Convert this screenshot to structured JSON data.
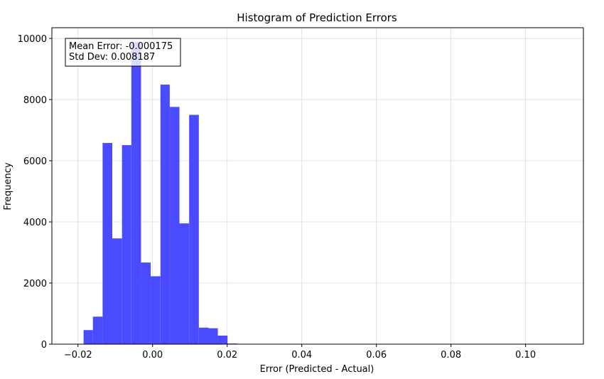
{
  "chart_data": {
    "type": "bar",
    "title": "Histogram of Prediction Errors",
    "xlabel": "Error (Predicted - Actual)",
    "ylabel": "Frequency",
    "xlim": [
      -0.027,
      0.1155
    ],
    "ylim": [
      0,
      10350
    ],
    "xticks": [
      -0.02,
      0.0,
      0.02,
      0.04,
      0.06,
      0.08,
      0.1
    ],
    "xtick_labels": [
      "−0.02",
      "0.00",
      "0.02",
      "0.04",
      "0.06",
      "0.08",
      "0.10"
    ],
    "yticks": [
      0,
      2000,
      4000,
      6000,
      8000,
      10000
    ],
    "ytick_labels": [
      "0",
      "2000",
      "4000",
      "6000",
      "8000",
      "10000"
    ],
    "grid": true,
    "bar_color": "#4a4aff",
    "bins": [
      {
        "x0": -0.0185,
        "x1": -0.016,
        "value": 460
      },
      {
        "x0": -0.016,
        "x1": -0.0134,
        "value": 900
      },
      {
        "x0": -0.0134,
        "x1": -0.0108,
        "value": 6580
      },
      {
        "x0": -0.0108,
        "x1": -0.0082,
        "value": 3460
      },
      {
        "x0": -0.0082,
        "x1": -0.0057,
        "value": 6510
      },
      {
        "x0": -0.0057,
        "x1": -0.0031,
        "value": 9880
      },
      {
        "x0": -0.0031,
        "x1": -0.0005,
        "value": 2670
      },
      {
        "x0": -0.0005,
        "x1": 0.0021,
        "value": 2220
      },
      {
        "x0": 0.0021,
        "x1": 0.0046,
        "value": 8490
      },
      {
        "x0": 0.0046,
        "x1": 0.0072,
        "value": 7760
      },
      {
        "x0": 0.0072,
        "x1": 0.0098,
        "value": 3950
      },
      {
        "x0": 0.0098,
        "x1": 0.0124,
        "value": 7500
      },
      {
        "x0": 0.0124,
        "x1": 0.015,
        "value": 540
      },
      {
        "x0": 0.015,
        "x1": 0.0175,
        "value": 520
      },
      {
        "x0": 0.0175,
        "x1": 0.0201,
        "value": 280
      },
      {
        "x0": 0.0201,
        "x1": 0.0227,
        "value": 20
      },
      {
        "x0": 0.0227,
        "x1": 0.0253,
        "value": 5
      }
    ],
    "annotation": {
      "lines": [
        "Mean Error: -0.000175",
        "Std Dev: 0.008187"
      ],
      "placement": "top-left"
    }
  }
}
